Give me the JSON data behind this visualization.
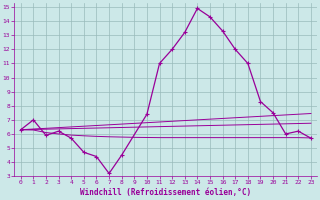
{
  "xlabel": "Windchill (Refroidissement éolien,°C)",
  "bg_color": "#cce8e8",
  "grid_color": "#99bbbb",
  "line_color": "#990099",
  "x_hours": [
    0,
    1,
    2,
    3,
    4,
    5,
    6,
    7,
    8,
    9,
    10,
    11,
    12,
    13,
    14,
    15,
    16,
    17,
    18,
    19,
    20,
    21,
    22,
    23
  ],
  "windchill": [
    6.3,
    7.0,
    5.9,
    6.2,
    5.7,
    4.7,
    4.4,
    3.2,
    4.5,
    null,
    7.4,
    11.0,
    12.0,
    13.2,
    14.9,
    14.3,
    13.3,
    12.0,
    11.0,
    8.3,
    7.5,
    6.0,
    6.2,
    5.7
  ],
  "line1_y": [
    6.3,
    6.35,
    6.4,
    6.45,
    6.5,
    6.55,
    6.6,
    6.65,
    6.7,
    6.75,
    6.8,
    6.85,
    6.9,
    6.95,
    7.0,
    7.05,
    7.1,
    7.15,
    7.2,
    7.25,
    7.3,
    7.35,
    7.4,
    7.45
  ],
  "line2_y": [
    6.3,
    6.32,
    6.34,
    6.36,
    6.38,
    6.4,
    6.42,
    6.44,
    6.46,
    6.48,
    6.5,
    6.52,
    6.54,
    6.56,
    6.58,
    6.6,
    6.62,
    6.64,
    6.66,
    6.68,
    6.7,
    6.72,
    6.74,
    6.76
  ],
  "line3_y": [
    6.3,
    6.28,
    6.1,
    6.0,
    5.92,
    5.87,
    5.83,
    5.8,
    5.78,
    5.76,
    5.75,
    5.74,
    5.74,
    5.74,
    5.74,
    5.74,
    5.74,
    5.74,
    5.74,
    5.74,
    5.74,
    5.74,
    5.74,
    5.72
  ],
  "ylim": [
    3,
    15
  ],
  "xlim": [
    0,
    23
  ],
  "yticks": [
    3,
    4,
    5,
    6,
    7,
    8,
    9,
    10,
    11,
    12,
    13,
    14,
    15
  ],
  "xticks": [
    0,
    1,
    2,
    3,
    4,
    5,
    6,
    7,
    8,
    9,
    10,
    11,
    12,
    13,
    14,
    15,
    16,
    17,
    18,
    19,
    20,
    21,
    22,
    23
  ]
}
